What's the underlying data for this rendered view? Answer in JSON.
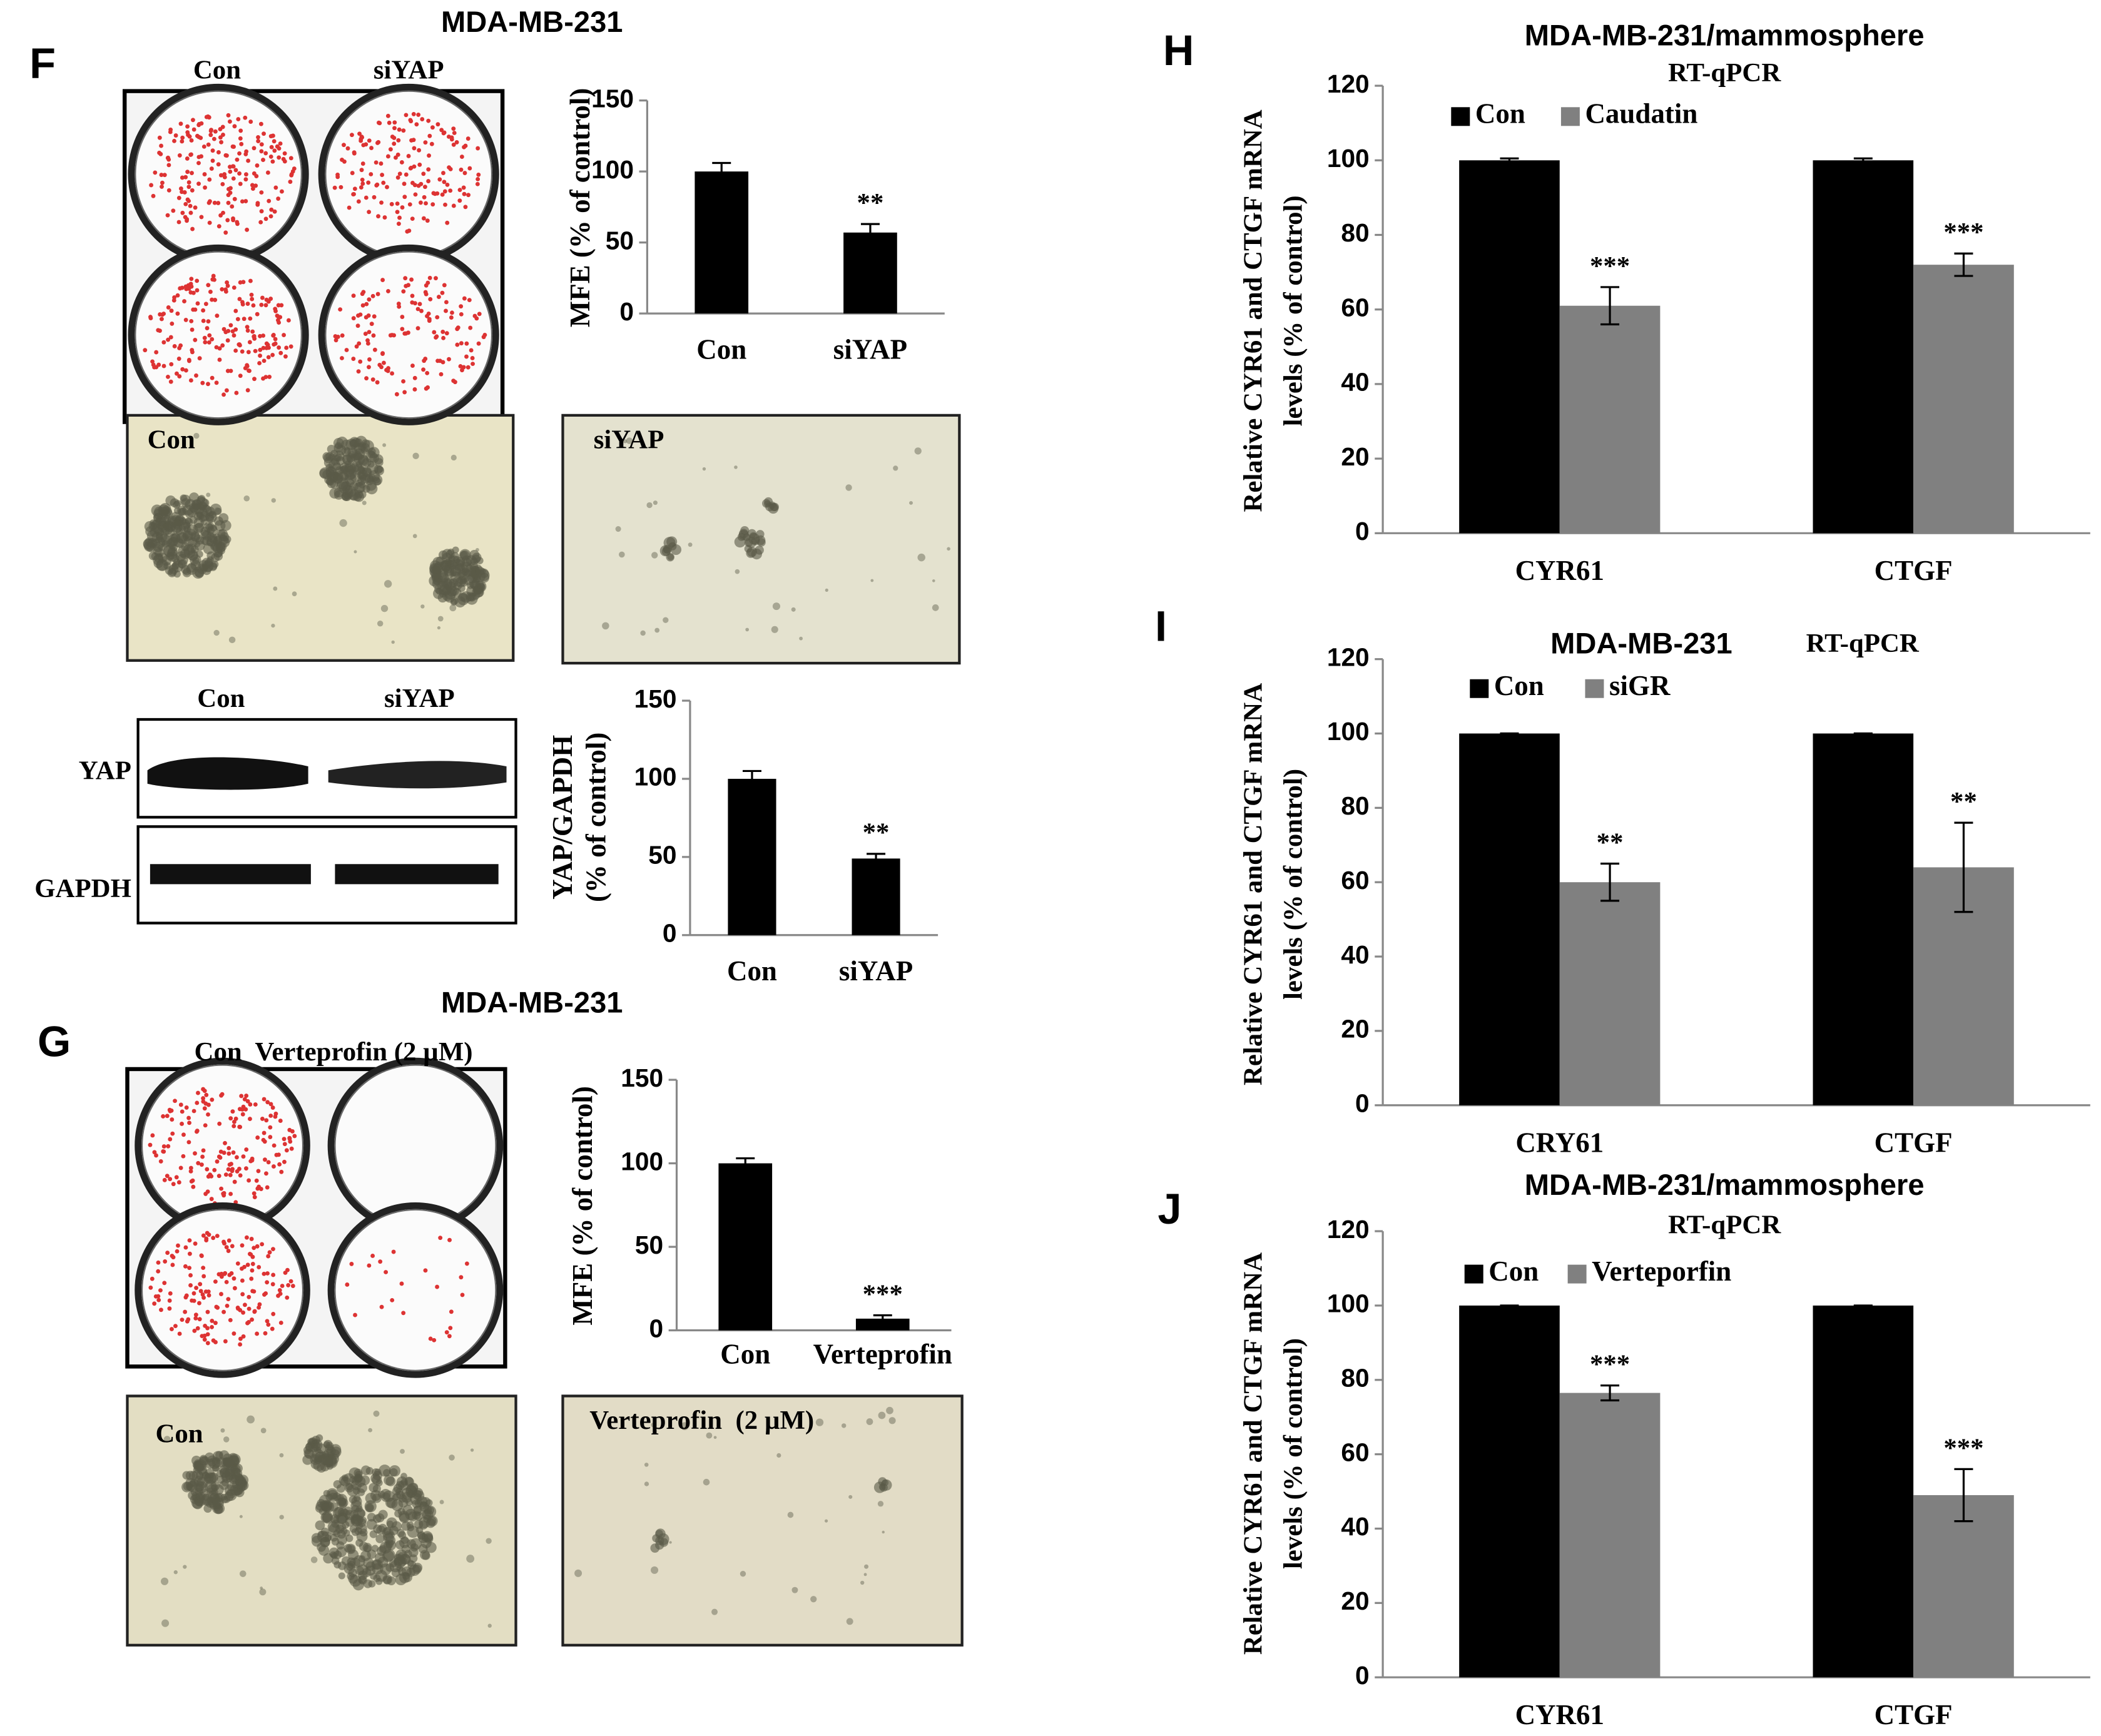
{
  "figure": {
    "panels": [
      "F",
      "G",
      "H",
      "I",
      "J"
    ],
    "plate_f": [
      "Con",
      "siYAP"
    ],
    "micro_f": [
      "Con",
      "siYAP"
    ],
    "blot": {
      "lanes": [
        "Con",
        "siYAP"
      ],
      "bands": [
        "YAP",
        "GAPDH"
      ]
    },
    "plate_g": "Con  Verteprofin (2 µM)",
    "micro_g": [
      "Con",
      "Verteprofin  (2 µM)"
    ]
  },
  "chart_data": [
    {
      "type": "bar",
      "title": "MDA-MB-231",
      "ylabel": [
        "MFE (% of control)"
      ],
      "categories": [
        "Con",
        "siYAP"
      ],
      "values": [
        100,
        57
      ],
      "errors": [
        6,
        6
      ],
      "color": "#000000",
      "ylim": [
        0,
        150
      ],
      "yticks": [
        0,
        50,
        100,
        150
      ],
      "annotations": [
        {
          "text": "**",
          "category": "siYAP"
        }
      ]
    },
    {
      "type": "bar",
      "ylabel": [
        "YAP/GAPDH",
        "(% of control)"
      ],
      "categories": [
        "Con",
        "siYAP"
      ],
      "values": [
        100,
        49
      ],
      "errors": [
        5,
        3
      ],
      "color": "#000000",
      "ylim": [
        0,
        150
      ],
      "yticks": [
        0,
        50,
        100,
        150
      ],
      "annotations": [
        {
          "text": "**",
          "category": "siYAP"
        }
      ]
    },
    {
      "type": "bar",
      "title": "MDA-MB-231",
      "ylabel": [
        "MFE (% of control)"
      ],
      "categories": [
        "Con",
        "Verteprofin"
      ],
      "values": [
        100,
        7
      ],
      "errors": [
        3,
        2
      ],
      "color": "#000000",
      "ylim": [
        0,
        150
      ],
      "yticks": [
        0,
        50,
        100,
        150
      ],
      "annotations": [
        {
          "text": "***",
          "category": "Verteprofin"
        }
      ]
    },
    {
      "type": "grouped_bar",
      "title": "MDA-MB-231/mammosphere",
      "subtitle": "RT-qPCR",
      "ylabel": [
        "Relative CYR61 and CTGF mRNA",
        "levels (% of control)"
      ],
      "categories": [
        "CYR61",
        "CTGF"
      ],
      "series": [
        {
          "name": "Con",
          "color": "#000000",
          "values": [
            100,
            100
          ],
          "errors": [
            0.5,
            0.5
          ]
        },
        {
          "name": "Caudatin",
          "color": "#808080",
          "values": [
            61,
            72
          ],
          "errors": [
            5,
            3
          ]
        }
      ],
      "ylim": [
        0,
        120
      ],
      "yticks": [
        0,
        20,
        40,
        60,
        80,
        100,
        120
      ],
      "annotations": [
        {
          "text": "***",
          "category": "CYR61",
          "series": "Caudatin"
        },
        {
          "text": "***",
          "category": "CTGF",
          "series": "Caudatin"
        }
      ]
    },
    {
      "type": "grouped_bar",
      "title": "MDA-MB-231",
      "subtitle": "RT-qPCR",
      "ylabel": [
        "Relative CYR61 and CTGF mRNA",
        "levels (% of control)"
      ],
      "categories": [
        "CRY61",
        "CTGF"
      ],
      "series": [
        {
          "name": "Con",
          "color": "#000000",
          "values": [
            100,
            100
          ],
          "errors": [
            0,
            0
          ]
        },
        {
          "name": "siGR",
          "color": "#808080",
          "values": [
            60,
            64
          ],
          "errors": [
            5,
            12
          ]
        }
      ],
      "ylim": [
        0,
        120
      ],
      "yticks": [
        0,
        20,
        40,
        60,
        80,
        100,
        120
      ],
      "annotations": [
        {
          "text": "**",
          "category": "CRY61",
          "series": "siGR"
        },
        {
          "text": "**",
          "category": "CTGF",
          "series": "siGR"
        }
      ]
    },
    {
      "type": "grouped_bar",
      "title": "MDA-MB-231/mammosphere",
      "subtitle": "RT-qPCR",
      "ylabel": [
        "Relative CYR61 and CTGF mRNA",
        "levels (% of control)"
      ],
      "categories": [
        "CYR61",
        "CTGF"
      ],
      "series": [
        {
          "name": "Con",
          "color": "#000000",
          "values": [
            100,
            100
          ],
          "errors": [
            0,
            0
          ]
        },
        {
          "name": "Verteporfin",
          "color": "#808080",
          "values": [
            76.5,
            49
          ],
          "errors": [
            2,
            7
          ]
        }
      ],
      "ylim": [
        0,
        120
      ],
      "yticks": [
        0,
        20,
        40,
        60,
        80,
        100,
        120
      ],
      "annotations": [
        {
          "text": "***",
          "category": "CYR61",
          "series": "Verteporfin"
        },
        {
          "text": "***",
          "category": "CTGF",
          "series": "Verteporfin"
        }
      ]
    }
  ]
}
